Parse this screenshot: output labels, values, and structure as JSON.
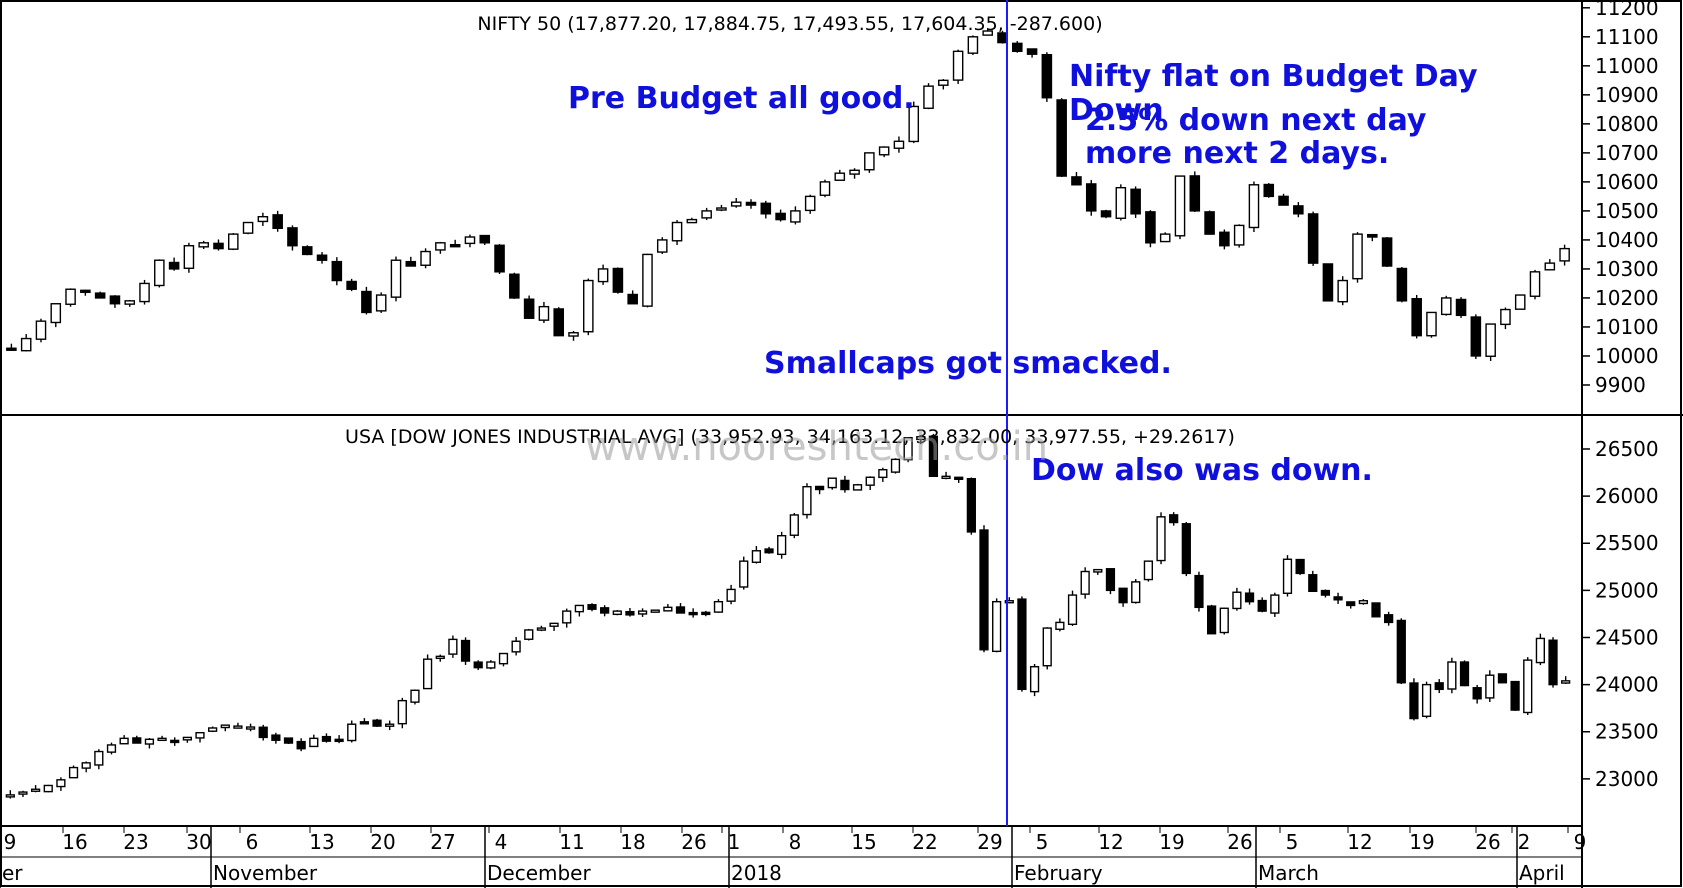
{
  "colors": {
    "annotation": "#1010dd",
    "up_candle": "#ffffff",
    "down_candle": "#000000",
    "marker_line": "#1a1aff",
    "watermark": "#9a9a9a"
  },
  "watermark": "www.nooreshtech.co.in",
  "chart_data": [
    {
      "type": "candlestick",
      "title": "NIFTY 50 (17,877.20, 17,884.75, 17,493.55, 17,604.35, -287.600)",
      "ylim": [
        9800,
        11220
      ],
      "ytick_labels": [
        "11200",
        "11100",
        "11000",
        "10900",
        "10800",
        "10700",
        "10600",
        "10500",
        "10400",
        "10300",
        "10200",
        "10100",
        "10000",
        "9900"
      ],
      "annotations": [
        "Pre Budget all good.",
        "Nifty flat on Budget Day",
        "Down",
        "2.5% down next day",
        "more next 2 days.",
        "Smallcaps got smacked."
      ],
      "close_approx": [
        10020,
        10060,
        10120,
        10180,
        10230,
        10220,
        10200,
        10180,
        10190,
        10250,
        10330,
        10300,
        10380,
        10390,
        10370,
        10420,
        10460,
        10480,
        10440,
        10380,
        10350,
        10330,
        10260,
        10230,
        10150,
        10210,
        10330,
        10310,
        10360,
        10390,
        10380,
        10410,
        10390,
        10290,
        10200,
        10130,
        10170,
        10070,
        10080,
        10260,
        10300,
        10220,
        10180,
        10350,
        10400,
        10460,
        10470,
        10500,
        10510,
        10530,
        10520,
        10490,
        10470,
        10500,
        10550,
        10600,
        10630,
        10640,
        10700,
        10720,
        10740,
        10860,
        10930,
        10950,
        11050,
        11100,
        11120,
        11080,
        11050,
        11040,
        10890,
        10620,
        10590,
        10500,
        10480,
        10580,
        10490,
        10390,
        10420,
        10620,
        10500,
        10420,
        10380,
        10450,
        10590,
        10550,
        10520,
        10490,
        10320,
        10190,
        10260,
        10420,
        10410,
        10310,
        10190,
        10070,
        10150,
        10200,
        10140,
        10000,
        10110,
        10160,
        10210,
        10290,
        10320,
        10370
      ]
    },
    {
      "type": "candlestick",
      "title": "USA [DOW JONES INDUSTRIAL AVG] (33,952.93, 34,163.12, 33,832.00, 33,977.55, +29.2617)",
      "ylim": [
        22500,
        26850
      ],
      "ytick_labels": [
        "26500",
        "26000",
        "25500",
        "25000",
        "24500",
        "24000",
        "23500",
        "23000"
      ],
      "annotations": [
        "Dow also was down."
      ],
      "close_approx": [
        22830,
        22860,
        22890,
        22930,
        22990,
        23120,
        23170,
        23290,
        23360,
        23430,
        23380,
        23420,
        23430,
        23390,
        23440,
        23490,
        23540,
        23570,
        23560,
        23550,
        23440,
        23410,
        23380,
        23320,
        23430,
        23400,
        23410,
        23580,
        23600,
        23560,
        23580,
        23830,
        23940,
        24270,
        24300,
        24480,
        24250,
        24180,
        24240,
        24330,
        24460,
        24580,
        24600,
        24650,
        24780,
        24840,
        24800,
        24760,
        24780,
        24740,
        24780,
        24790,
        24820,
        24760,
        24750,
        24760,
        24880,
        25010,
        25310,
        25420,
        25400,
        25580,
        25800,
        26100,
        26070,
        26190,
        26070,
        26120,
        26200,
        26280,
        26390,
        26620,
        26630,
        26210,
        26210,
        26190,
        25620,
        24370,
        24880,
        24890,
        23950,
        24190,
        24600,
        24660,
        24950,
        25200,
        25220,
        25000,
        24870,
        25090,
        25310,
        25780,
        25720,
        25180,
        24820,
        24540,
        24810,
        24980,
        24880,
        24780,
        24950,
        25330,
        25180,
        24990,
        24950,
        24900,
        24840,
        24890,
        24720,
        24660,
        24020,
        23640,
        24000,
        23950,
        24240,
        23990,
        23850,
        24100,
        24020,
        23730,
        24260,
        24490,
        24000,
        24040
      ]
    }
  ],
  "x_axis": {
    "day_labels": [
      "9",
      "16",
      "23",
      "30",
      "6",
      "13",
      "20",
      "27",
      "4",
      "11",
      "18",
      "26",
      "1",
      "8",
      "15",
      "22",
      "29",
      "5",
      "12",
      "19",
      "26",
      "5",
      "12",
      "19",
      "26",
      "2",
      "9"
    ],
    "month_labels": [
      "er",
      "November",
      "December",
      "2018",
      "February",
      "March",
      "April"
    ]
  }
}
